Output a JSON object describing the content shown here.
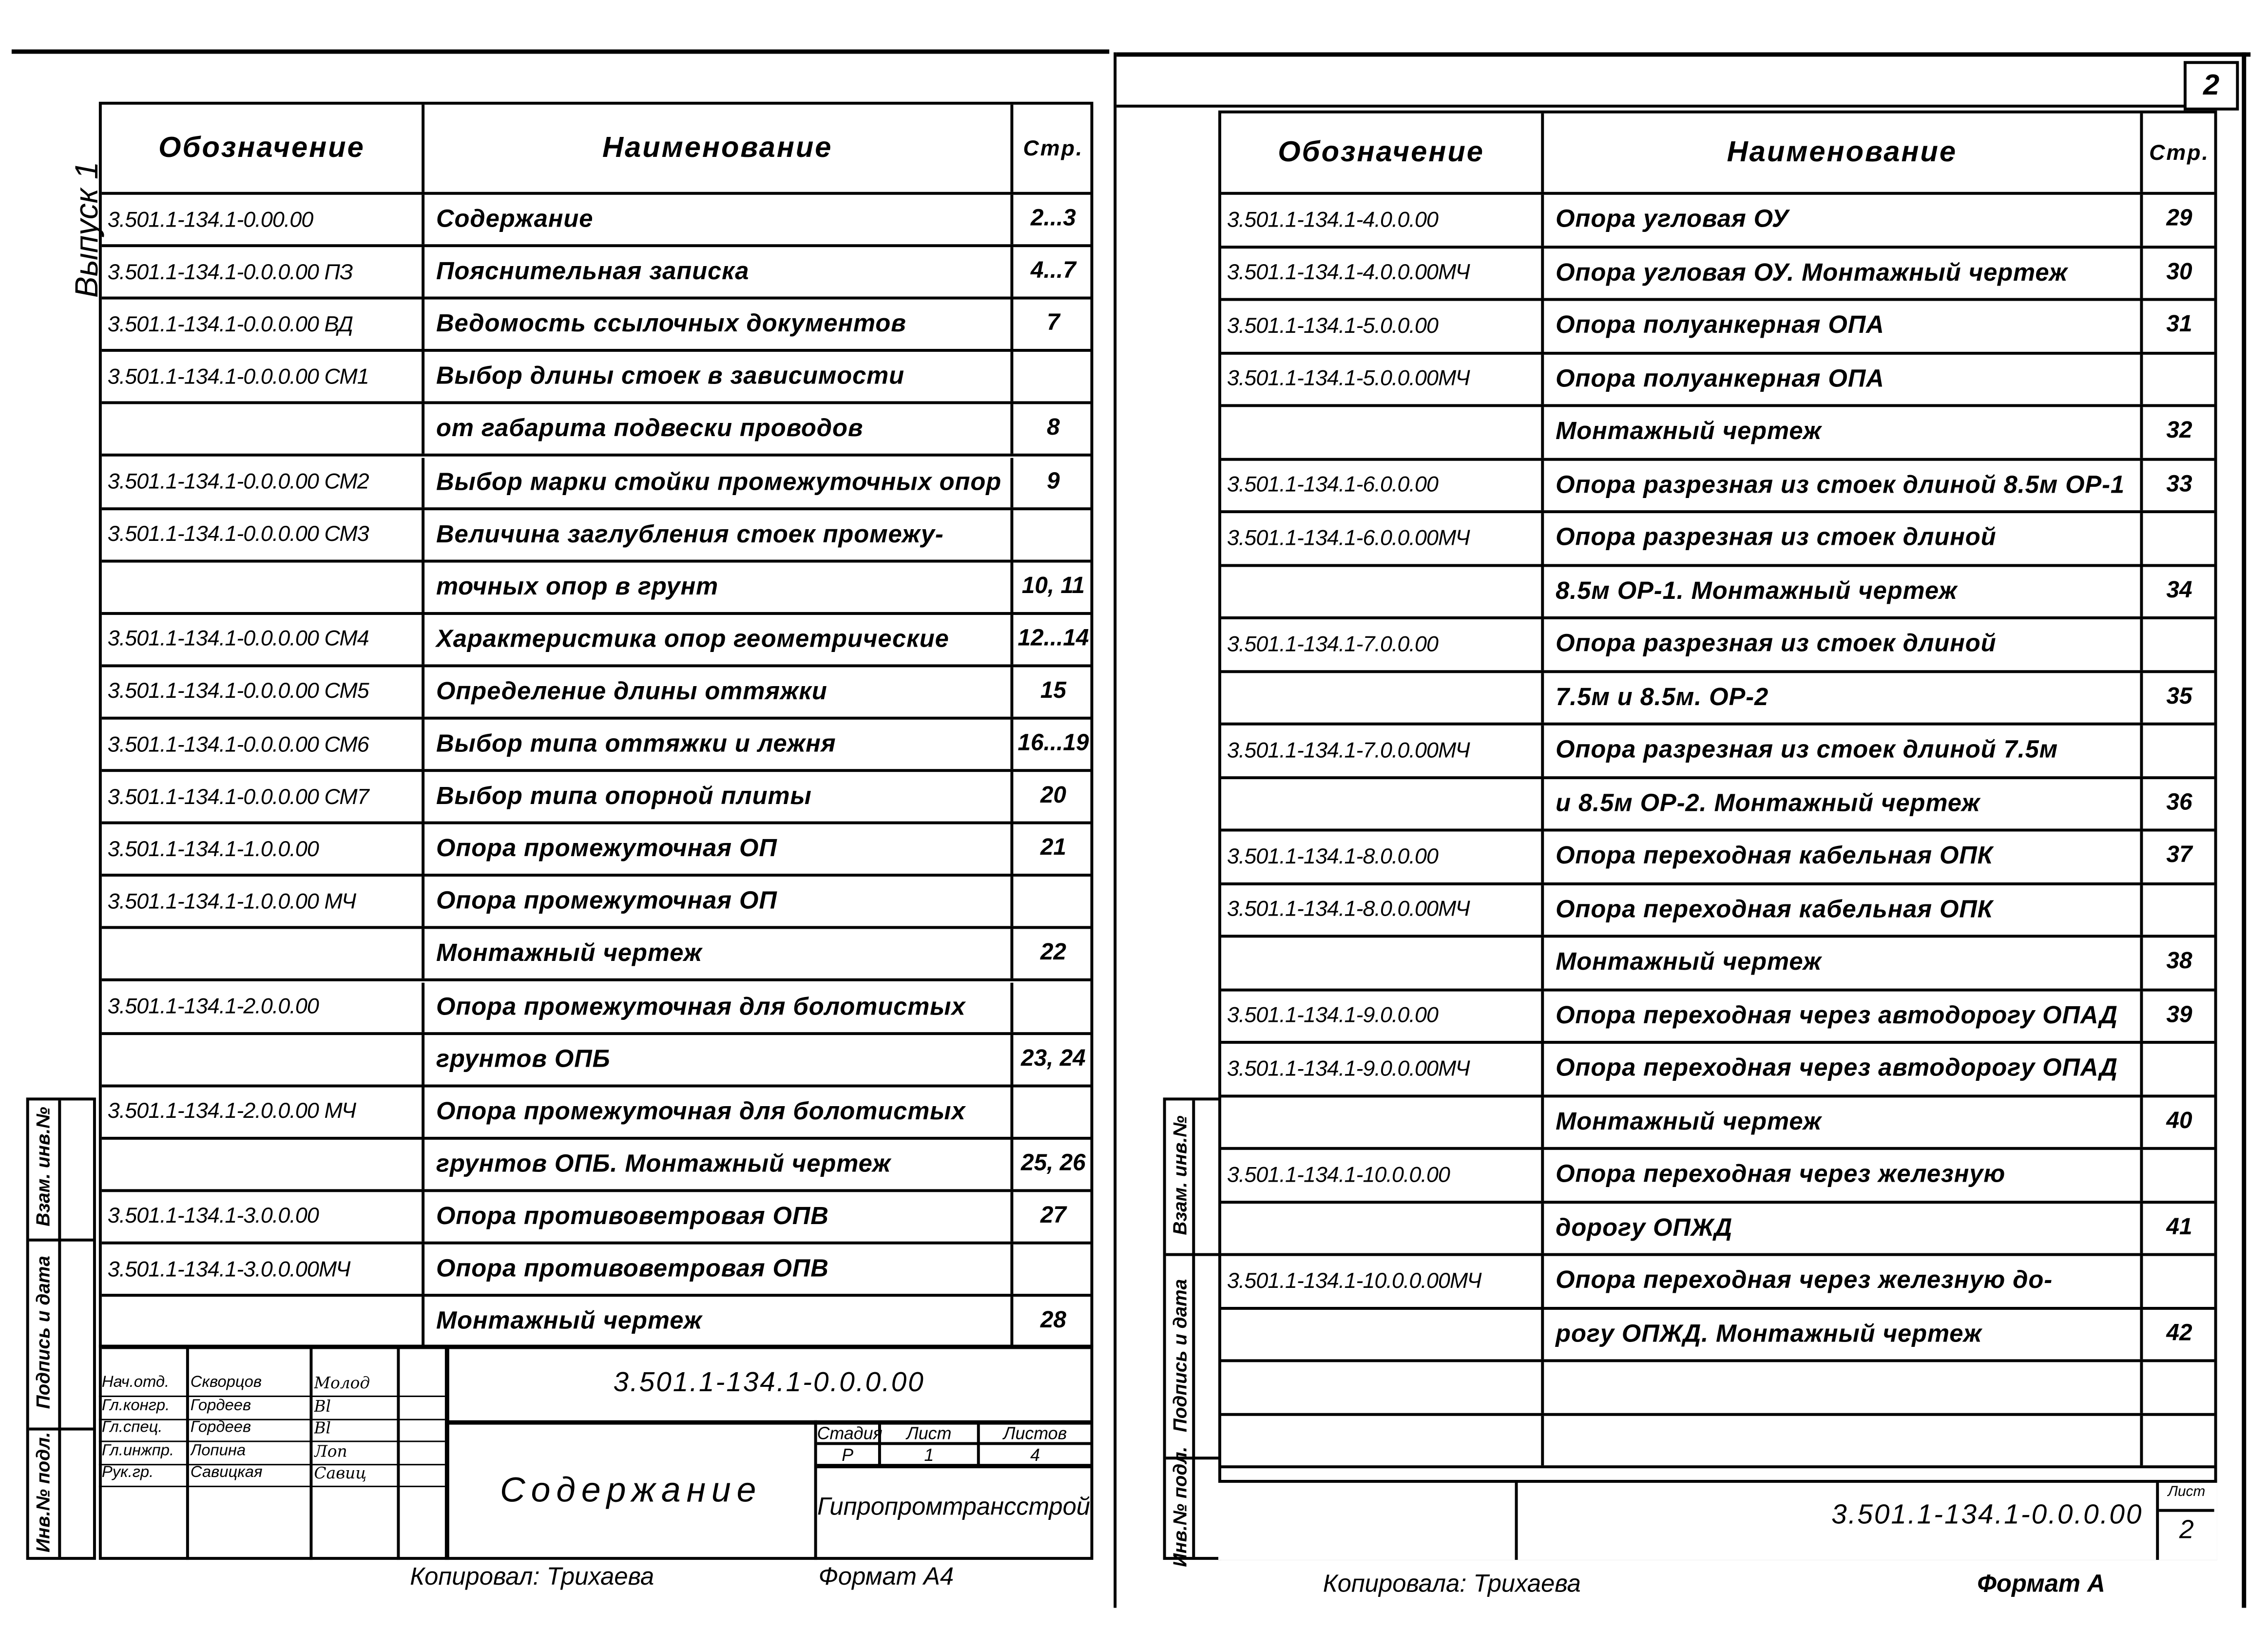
{
  "sheet_number": "2",
  "issue_label": "Выпуск 1",
  "columns": {
    "designation": "Обозначение",
    "name": "Наименование",
    "page": "Стр."
  },
  "side_stamp": {
    "replace_inv": "Взам. инв.№",
    "signature_date": "Подпись и дата",
    "orig_inv": "Инв.№ подл."
  },
  "left_table": [
    {
      "code": "3.501.1-134.1-0.00.00",
      "name": "Содержание",
      "page": "2...3"
    },
    {
      "code": "3.501.1-134.1-0.0.0.00 ПЗ",
      "name": "Пояснительная записка",
      "page": "4...7"
    },
    {
      "code": "3.501.1-134.1-0.0.0.00 ВД",
      "name": "Ведомость ссылочных документов",
      "page": "7"
    },
    {
      "code": "3.501.1-134.1-0.0.0.00 СМ1",
      "name": "Выбор длины стоек в зависимости",
      "page": ""
    },
    {
      "code": "",
      "name": "от габарита подвески проводов",
      "page": "8"
    },
    {
      "code": "3.501.1-134.1-0.0.0.00 СМ2",
      "name": "Выбор марки стойки промежуточных опор",
      "page": "9"
    },
    {
      "code": "3.501.1-134.1-0.0.0.00 СМ3",
      "name": "Величина заглубления стоек промежу-",
      "page": ""
    },
    {
      "code": "",
      "name": "точных опор в грунт",
      "page": "10, 11"
    },
    {
      "code": "3.501.1-134.1-0.0.0.00 СМ4",
      "name": "Характеристика опор геометрические",
      "page": "12...14"
    },
    {
      "code": "3.501.1-134.1-0.0.0.00 СМ5",
      "name": "Определение длины оттяжки",
      "page": "15"
    },
    {
      "code": "3.501.1-134.1-0.0.0.00 СМ6",
      "name": "Выбор типа оттяжки и лежня",
      "page": "16...19"
    },
    {
      "code": "3.501.1-134.1-0.0.0.00 СМ7",
      "name": "Выбор типа опорной плиты",
      "page": "20"
    },
    {
      "code": "3.501.1-134.1-1.0.0.00",
      "name": "Опора промежуточная ОП",
      "page": "21"
    },
    {
      "code": "3.501.1-134.1-1.0.0.00 МЧ",
      "name": "Опора промежуточная ОП",
      "page": ""
    },
    {
      "code": "",
      "name": "Монтажный чертеж",
      "page": "22"
    },
    {
      "code": "3.501.1-134.1-2.0.0.00",
      "name": "Опора промежуточная для болотистых",
      "page": ""
    },
    {
      "code": "",
      "name": "грунтов ОПБ",
      "page": "23, 24"
    },
    {
      "code": "3.501.1-134.1-2.0.0.00 МЧ",
      "name": "Опора промежуточная для болотистых",
      "page": ""
    },
    {
      "code": "",
      "name": "грунтов ОПБ. Монтажный чертеж",
      "page": "25, 26"
    },
    {
      "code": "3.501.1-134.1-3.0.0.00",
      "name": "Опора противоветровая ОПВ",
      "page": "27"
    },
    {
      "code": "3.501.1-134.1-3.0.0.00МЧ",
      "name": "Опора противоветровая ОПВ",
      "page": ""
    },
    {
      "code": "",
      "name": "Монтажный чертеж",
      "page": "28"
    }
  ],
  "right_table": [
    {
      "code": "3.501.1-134.1-4.0.0.00",
      "name": "Опора угловая ОУ",
      "page": "29"
    },
    {
      "code": "3.501.1-134.1-4.0.0.00МЧ",
      "name": "Опора угловая ОУ. Монтажный чертеж",
      "page": "30"
    },
    {
      "code": "3.501.1-134.1-5.0.0.00",
      "name": "Опора полуанкерная ОПА",
      "page": "31"
    },
    {
      "code": "3.501.1-134.1-5.0.0.00МЧ",
      "name": "Опора полуанкерная ОПА",
      "page": ""
    },
    {
      "code": "",
      "name": "Монтажный чертеж",
      "page": "32"
    },
    {
      "code": "3.501.1-134.1-6.0.0.00",
      "name": "Опора разрезная из стоек длиной 8.5м ОР-1",
      "page": "33"
    },
    {
      "code": "3.501.1-134.1-6.0.0.00МЧ",
      "name": "Опора разрезная из стоек длиной",
      "page": ""
    },
    {
      "code": "",
      "name": "8.5м ОР-1. Монтажный чертеж",
      "page": "34"
    },
    {
      "code": "3.501.1-134.1-7.0.0.00",
      "name": "Опора разрезная из стоек длиной",
      "page": ""
    },
    {
      "code": "",
      "name": "7.5м и 8.5м. ОР-2",
      "page": "35"
    },
    {
      "code": "3.501.1-134.1-7.0.0.00МЧ",
      "name": "Опора разрезная из стоек длиной 7.5м",
      "page": ""
    },
    {
      "code": "",
      "name": "и 8.5м ОР-2. Монтажный чертеж",
      "page": "36"
    },
    {
      "code": "3.501.1-134.1-8.0.0.00",
      "name": "Опора переходная кабельная ОПК",
      "page": "37"
    },
    {
      "code": "3.501.1-134.1-8.0.0.00МЧ",
      "name": "Опора переходная кабельная ОПК",
      "page": ""
    },
    {
      "code": "",
      "name": "Монтажный чертеж",
      "page": "38"
    },
    {
      "code": "3.501.1-134.1-9.0.0.00",
      "name": "Опора переходная через автодорогу ОПАД",
      "page": "39"
    },
    {
      "code": "3.501.1-134.1-9.0.0.00МЧ",
      "name": "Опора переходная через автодорогу ОПАД",
      "page": ""
    },
    {
      "code": "",
      "name": "Монтажный чертеж",
      "page": "40"
    },
    {
      "code": "3.501.1-134.1-10.0.0.00",
      "name": "Опора переходная через железную",
      "page": ""
    },
    {
      "code": "",
      "name": "дорогу ОПЖД",
      "page": "41"
    },
    {
      "code": "3.501.1-134.1-10.0.0.00МЧ",
      "name": "Опора переходная через железную до-",
      "page": ""
    },
    {
      "code": "",
      "name": "рогу ОПЖД. Монтажный чертеж",
      "page": "42"
    },
    {
      "code": "",
      "name": "",
      "page": ""
    },
    {
      "code": "",
      "name": "",
      "page": ""
    }
  ],
  "title_block": {
    "doc_code": "3.501.1-134.1-0.0.0.00",
    "title": "Содержание",
    "signers": [
      {
        "role": "Нач.отд.",
        "name": "Скворцов",
        "sign": "Молод"
      },
      {
        "role": "Гл.конгр.",
        "name": "Гордеев",
        "sign": "Bl"
      },
      {
        "role": "Гл.спец.",
        "name": "Гордеев",
        "sign": "Bl"
      },
      {
        "role": "Гл.инжпр.",
        "name": "Лопина",
        "sign": "Лоп"
      },
      {
        "role": "Рук.гр.",
        "name": "Савицкая",
        "sign": "Савиц"
      }
    ],
    "stage_label": "Стадия",
    "sheet_label": "Лист",
    "sheets_label": "Листов",
    "stage": "Р",
    "sheet": "1",
    "sheets": "4",
    "organization": "Гипропромтрансстрой"
  },
  "right_stamp": {
    "doc_code": "3.501.1-134.1-0.0.0.00",
    "sheet_label": "Лист",
    "sheet": "2"
  },
  "footer_left": {
    "copied": "Копировал: Трихаева",
    "format": "Формат А4"
  },
  "footer_right": {
    "copied": "Копировала: Трихаева",
    "format": "Формат А"
  }
}
